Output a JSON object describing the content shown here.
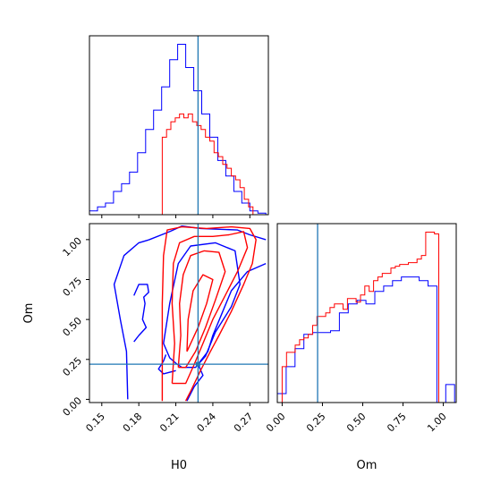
{
  "chart_data": [
    {
      "type": "histogram",
      "panel": "H0-marginal",
      "xlim": [
        0.14,
        0.285
      ],
      "truth_line": 0.228,
      "series": [
        {
          "color": "#0000ff",
          "edges": [
            0.14,
            0.1465,
            0.153,
            0.1595,
            0.166,
            0.1725,
            0.179,
            0.1855,
            0.192,
            0.1985,
            0.205,
            0.2115,
            0.218,
            0.2245,
            0.231,
            0.2375,
            0.244,
            0.2505,
            0.257,
            0.2635,
            0.27,
            0.2765,
            0.283
          ],
          "counts": [
            0.5,
            1,
            1.5,
            3,
            4,
            5.5,
            8,
            11,
            13.5,
            16.5,
            20,
            22,
            19,
            16,
            13,
            10,
            7,
            5,
            3,
            1.5,
            0.5,
            0.2
          ]
        },
        {
          "color": "#ff0000",
          "edges": [
            0.199,
            0.2025,
            0.206,
            0.2095,
            0.213,
            0.2165,
            0.22,
            0.2235,
            0.227,
            0.2305,
            0.234,
            0.2375,
            0.241,
            0.2445,
            0.248,
            0.2515,
            0.255,
            0.2585,
            0.262,
            0.2655,
            0.269,
            0.2725
          ],
          "counts": [
            10,
            11,
            12,
            12.5,
            13,
            12.5,
            13,
            12,
            11.5,
            11,
            10,
            9.5,
            8,
            7.5,
            6.5,
            6,
            5,
            4.5,
            3.5,
            2,
            1
          ]
        }
      ]
    },
    {
      "type": "contour",
      "panel": "H0-Om-joint",
      "xlabel": "H0",
      "ylabel": "Om",
      "xlim": [
        0.14,
        0.285
      ],
      "ylim": [
        -0.02,
        1.1
      ],
      "xticks": [
        "0.15",
        "0.18",
        "0.21",
        "0.24",
        "0.27"
      ],
      "yticks": [
        "0.00",
        "0.25",
        "0.50",
        "0.75",
        "1.00"
      ],
      "truth": {
        "H0": 0.228,
        "Om": 0.22
      },
      "blue_contours": [
        [
          [
            0.188,
            0.998
          ],
          [
            0.205,
            1.05
          ],
          [
            0.215,
            1.085
          ],
          [
            0.23,
            1.07
          ],
          [
            0.26,
            1.06
          ],
          [
            0.27,
            1.03
          ],
          [
            0.283,
            1.0
          ]
        ],
        [
          [
            0.171,
            0.0
          ],
          [
            0.17,
            0.3
          ],
          [
            0.165,
            0.5
          ],
          [
            0.16,
            0.72
          ],
          [
            0.168,
            0.9
          ],
          [
            0.18,
            0.98
          ],
          [
            0.188,
            0.998
          ]
        ],
        [
          [
            0.211,
            0.22
          ],
          [
            0.205,
            0.26
          ],
          [
            0.2,
            0.35
          ],
          [
            0.205,
            0.6
          ],
          [
            0.212,
            0.85
          ],
          [
            0.222,
            0.96
          ],
          [
            0.242,
            0.98
          ],
          [
            0.258,
            0.93
          ],
          [
            0.262,
            0.72
          ],
          [
            0.255,
            0.58
          ],
          [
            0.242,
            0.42
          ],
          [
            0.234,
            0.27
          ],
          [
            0.226,
            0.2
          ],
          [
            0.215,
            0.2
          ],
          [
            0.211,
            0.22
          ]
        ],
        [
          [
            0.176,
            0.36
          ],
          [
            0.18,
            0.4
          ],
          [
            0.186,
            0.45
          ],
          [
            0.183,
            0.5
          ],
          [
            0.185,
            0.6
          ],
          [
            0.184,
            0.64
          ],
          [
            0.188,
            0.67
          ],
          [
            0.187,
            0.72
          ],
          [
            0.18,
            0.72
          ],
          [
            0.176,
            0.65
          ]
        ],
        [
          [
            0.283,
            0.85
          ],
          [
            0.268,
            0.8
          ],
          [
            0.255,
            0.68
          ],
          [
            0.248,
            0.55
          ],
          [
            0.24,
            0.4
          ],
          [
            0.236,
            0.3
          ],
          [
            0.228,
            0.22
          ],
          [
            0.232,
            0.15
          ],
          [
            0.225,
            0.08
          ],
          [
            0.219,
            -0.01
          ]
        ],
        [
          [
            0.202,
            0.28
          ],
          [
            0.2,
            0.24
          ],
          [
            0.196,
            0.19
          ],
          [
            0.2,
            0.16
          ],
          [
            0.21,
            0.18
          ]
        ]
      ],
      "red_contours": [
        [
          [
            0.199,
            -0.01
          ],
          [
            0.199,
            0.3
          ],
          [
            0.199,
            0.6
          ],
          [
            0.2,
            0.9
          ],
          [
            0.203,
            1.06
          ],
          [
            0.215,
            1.08
          ],
          [
            0.235,
            1.07
          ],
          [
            0.255,
            1.08
          ],
          [
            0.27,
            1.07
          ],
          [
            0.275,
            1.0
          ],
          [
            0.272,
            0.85
          ],
          [
            0.265,
            0.72
          ],
          [
            0.255,
            0.55
          ],
          [
            0.245,
            0.4
          ],
          [
            0.238,
            0.3
          ],
          [
            0.23,
            0.18
          ],
          [
            0.222,
            0.05
          ],
          [
            0.218,
            -0.01
          ]
        ],
        [
          [
            0.207,
            0.1
          ],
          [
            0.209,
            0.35
          ],
          [
            0.207,
            0.6
          ],
          [
            0.208,
            0.85
          ],
          [
            0.213,
            0.98
          ],
          [
            0.225,
            1.02
          ],
          [
            0.24,
            1.02
          ],
          [
            0.253,
            1.03
          ],
          [
            0.265,
            1.05
          ],
          [
            0.268,
            0.95
          ],
          [
            0.26,
            0.8
          ],
          [
            0.25,
            0.65
          ],
          [
            0.24,
            0.5
          ],
          [
            0.232,
            0.35
          ],
          [
            0.225,
            0.22
          ],
          [
            0.218,
            0.1
          ],
          [
            0.207,
            0.1
          ]
        ],
        [
          [
            0.212,
            0.2
          ],
          [
            0.214,
            0.4
          ],
          [
            0.213,
            0.6
          ],
          [
            0.216,
            0.78
          ],
          [
            0.222,
            0.9
          ],
          [
            0.233,
            0.93
          ],
          [
            0.245,
            0.92
          ],
          [
            0.25,
            0.8
          ],
          [
            0.242,
            0.62
          ],
          [
            0.234,
            0.45
          ],
          [
            0.226,
            0.3
          ],
          [
            0.218,
            0.2
          ],
          [
            0.212,
            0.2
          ]
        ],
        [
          [
            0.219,
            0.3
          ],
          [
            0.22,
            0.5
          ],
          [
            0.224,
            0.68
          ],
          [
            0.232,
            0.78
          ],
          [
            0.24,
            0.75
          ],
          [
            0.235,
            0.6
          ],
          [
            0.228,
            0.45
          ],
          [
            0.219,
            0.3
          ]
        ]
      ]
    },
    {
      "type": "histogram",
      "panel": "Om-marginal",
      "xlabel": "Om",
      "xlim": [
        -0.03,
        1.08
      ],
      "xticks": [
        "0.00",
        "0.25",
        "0.50",
        "0.75",
        "1.00"
      ],
      "truth_line": 0.22,
      "series": [
        {
          "color": "#0000ff",
          "edges": [
            -0.03,
            0.025,
            0.08,
            0.135,
            0.19,
            0.245,
            0.3,
            0.355,
            0.41,
            0.465,
            0.52,
            0.575,
            0.63,
            0.685,
            0.74,
            0.795,
            0.85,
            0.905,
            0.96,
            1.015,
            1.07
          ],
          "counts": [
            0.05,
            0.2,
            0.3,
            0.38,
            0.39,
            0.39,
            0.4,
            0.5,
            0.55,
            0.57,
            0.55,
            0.62,
            0.65,
            0.68,
            0.7,
            0.7,
            0.68,
            0.65,
            0.0,
            0.1
          ]
        },
        {
          "color": "#ff0000",
          "edges": [
            0.0,
            0.027,
            0.054,
            0.081,
            0.108,
            0.135,
            0.162,
            0.189,
            0.216,
            0.243,
            0.27,
            0.297,
            0.324,
            0.351,
            0.378,
            0.405,
            0.432,
            0.459,
            0.486,
            0.513,
            0.54,
            0.567,
            0.594,
            0.621,
            0.648,
            0.675,
            0.702,
            0.729,
            0.756,
            0.783,
            0.81,
            0.837,
            0.864,
            0.891,
            0.918,
            0.945,
            0.972
          ],
          "counts": [
            0.2,
            0.28,
            0.28,
            0.32,
            0.35,
            0.36,
            0.38,
            0.43,
            0.48,
            0.48,
            0.5,
            0.53,
            0.55,
            0.55,
            0.52,
            0.58,
            0.58,
            0.56,
            0.6,
            0.65,
            0.62,
            0.68,
            0.7,
            0.72,
            0.72,
            0.75,
            0.76,
            0.77,
            0.77,
            0.78,
            0.78,
            0.8,
            0.82,
            0.95,
            0.95,
            0.94
          ]
        }
      ]
    }
  ]
}
